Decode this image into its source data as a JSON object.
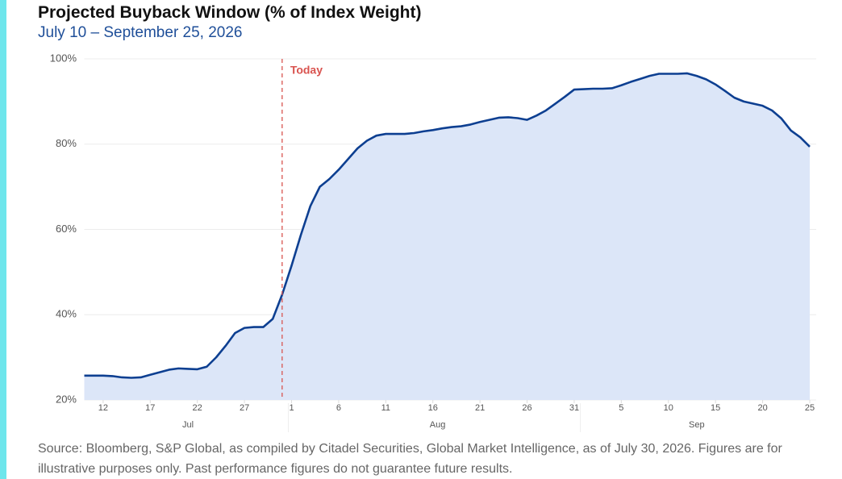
{
  "chart_data": {
    "type": "area",
    "title": "Projected Buyback Window (% of Index Weight)",
    "subtitle": "July 10 – September 25, 2026",
    "source": "Source: Bloomberg, S&P Global, as compiled by Citadel Securities, Global Market Intelligence, as of July 30, 2026. Figures are for illustrative purposes only. Past performance figures do not guarantee future results.",
    "x": [
      "2026-07-10",
      "2026-07-11",
      "2026-07-12",
      "2026-07-13",
      "2026-07-14",
      "2026-07-15",
      "2026-07-16",
      "2026-07-17",
      "2026-07-18",
      "2026-07-19",
      "2026-07-20",
      "2026-07-21",
      "2026-07-22",
      "2026-07-23",
      "2026-07-24",
      "2026-07-25",
      "2026-07-26",
      "2026-07-27",
      "2026-07-28",
      "2026-07-29",
      "2026-07-30",
      "2026-07-31",
      "2026-08-01",
      "2026-08-02",
      "2026-08-03",
      "2026-08-04",
      "2026-08-05",
      "2026-08-06",
      "2026-08-07",
      "2026-08-08",
      "2026-08-09",
      "2026-08-10",
      "2026-08-11",
      "2026-08-12",
      "2026-08-13",
      "2026-08-14",
      "2026-08-15",
      "2026-08-16",
      "2026-08-17",
      "2026-08-18",
      "2026-08-19",
      "2026-08-20",
      "2026-08-21",
      "2026-08-22",
      "2026-08-23",
      "2026-08-24",
      "2026-08-25",
      "2026-08-26",
      "2026-08-27",
      "2026-08-28",
      "2026-08-29",
      "2026-08-30",
      "2026-08-31",
      "2026-09-01",
      "2026-09-02",
      "2026-09-03",
      "2026-09-04",
      "2026-09-05",
      "2026-09-06",
      "2026-09-07",
      "2026-09-08",
      "2026-09-09",
      "2026-09-10",
      "2026-09-11",
      "2026-09-12",
      "2026-09-13",
      "2026-09-14",
      "2026-09-15",
      "2026-09-16",
      "2026-09-17",
      "2026-09-18",
      "2026-09-19",
      "2026-09-20",
      "2026-09-21",
      "2026-09-22",
      "2026-09-23",
      "2026-09-24",
      "2026-09-25"
    ],
    "values": [
      25.7,
      25.7,
      25.7,
      25.6,
      25.3,
      25.2,
      25.3,
      25.9,
      26.5,
      27.1,
      27.4,
      27.3,
      27.2,
      27.8,
      30.0,
      32.7,
      35.7,
      36.9,
      37.1,
      37.1,
      39.0,
      44.7,
      51.5,
      58.8,
      65.5,
      70.0,
      71.8,
      74.0,
      76.5,
      79.0,
      80.8,
      82.0,
      82.4,
      82.4,
      82.4,
      82.6,
      83.0,
      83.3,
      83.7,
      84.0,
      84.2,
      84.6,
      85.2,
      85.7,
      86.2,
      86.3,
      86.1,
      85.7,
      86.7,
      87.9,
      89.5,
      91.1,
      92.8,
      92.9,
      93.0,
      93.0,
      93.1,
      93.8,
      94.6,
      95.3,
      96.0,
      96.5,
      96.5,
      96.5,
      96.6,
      96.0,
      95.2,
      94.0,
      92.5,
      90.9,
      90.0,
      89.5,
      89.0,
      87.9,
      86.0,
      83.2,
      81.6,
      79.4
    ],
    "color": "#0d3f91",
    "fill": "#dce6f8",
    "xlim": [
      "2026-07-10",
      "2026-09-25"
    ],
    "xticks": [
      {
        "value": "2026-07-12",
        "label": "12"
      },
      {
        "value": "2026-07-17",
        "label": "17"
      },
      {
        "value": "2026-07-22",
        "label": "22"
      },
      {
        "value": "2026-07-27",
        "label": "27"
      },
      {
        "value": "2026-08-01",
        "label": "1"
      },
      {
        "value": "2026-08-06",
        "label": "6"
      },
      {
        "value": "2026-08-11",
        "label": "11"
      },
      {
        "value": "2026-08-16",
        "label": "16"
      },
      {
        "value": "2026-08-21",
        "label": "21"
      },
      {
        "value": "2026-08-26",
        "label": "26"
      },
      {
        "value": "2026-08-31",
        "label": "31"
      },
      {
        "value": "2026-09-05",
        "label": "5"
      },
      {
        "value": "2026-09-10",
        "label": "10"
      },
      {
        "value": "2026-09-15",
        "label": "15"
      },
      {
        "value": "2026-09-20",
        "label": "20"
      },
      {
        "value": "2026-09-25",
        "label": "25"
      }
    ],
    "months": [
      {
        "value": "2026-07-01",
        "label": "Jul"
      },
      {
        "value": "2026-08-01",
        "label": "Aug"
      },
      {
        "value": "2026-09-01",
        "label": "Sep"
      }
    ],
    "ylim": [
      20,
      100
    ],
    "yticks": [
      {
        "value": 20,
        "label": "20%"
      },
      {
        "value": 40,
        "label": "40%"
      },
      {
        "value": 60,
        "label": "60%"
      },
      {
        "value": 80,
        "label": "80%"
      },
      {
        "value": 100,
        "label": "100%"
      }
    ],
    "grid": true,
    "annotation": {
      "x": "2026-07-31",
      "label": "Today",
      "color": "#d9534f"
    }
  }
}
